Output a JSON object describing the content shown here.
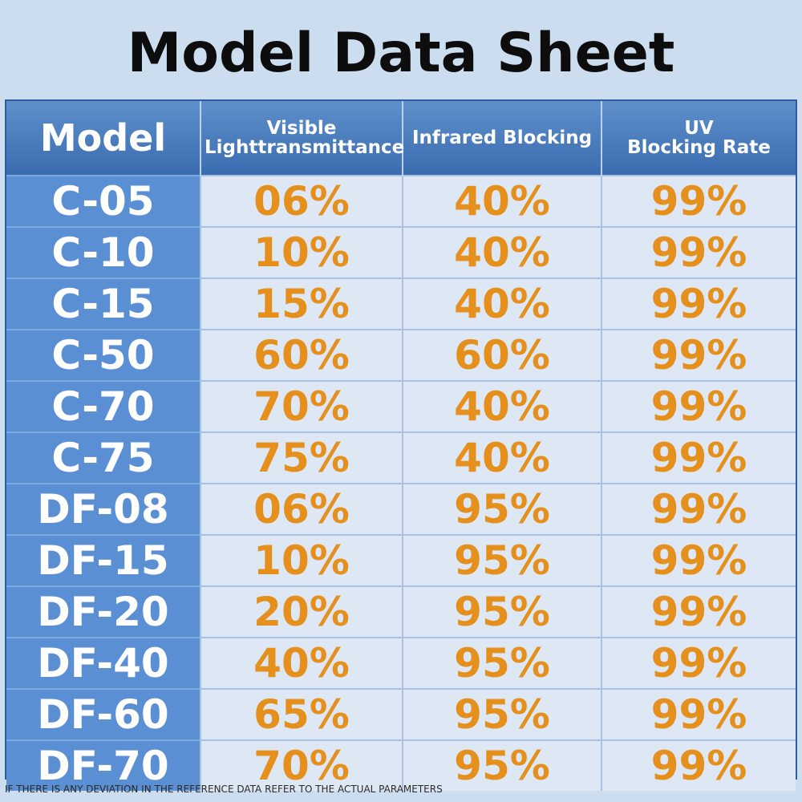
{
  "title": "Model Data Sheet",
  "headers": {
    "model": "Model",
    "visible_line1": "Visible",
    "visible_line2": "Lighttransmittance",
    "infrared": "Infrared Blocking",
    "uv_line1": "UV",
    "uv_line2": "Blocking Rate"
  },
  "rows": [
    {
      "model": "C-05",
      "visible": "06%",
      "infrared": "40%",
      "uv": "99%"
    },
    {
      "model": "C-10",
      "visible": "10%",
      "infrared": "40%",
      "uv": "99%"
    },
    {
      "model": "C-15",
      "visible": "15%",
      "infrared": "40%",
      "uv": "99%"
    },
    {
      "model": "C-50",
      "visible": "60%",
      "infrared": "60%",
      "uv": "99%"
    },
    {
      "model": "C-70",
      "visible": "70%",
      "infrared": "40%",
      "uv": "99%"
    },
    {
      "model": "C-75",
      "visible": "75%",
      "infrared": "40%",
      "uv": "99%"
    },
    {
      "model": "DF-08",
      "visible": "06%",
      "infrared": "95%",
      "uv": "99%"
    },
    {
      "model": "DF-15",
      "visible": "10%",
      "infrared": "95%",
      "uv": "99%"
    },
    {
      "model": "DF-20",
      "visible": "20%",
      "infrared": "95%",
      "uv": "99%"
    },
    {
      "model": "DF-40",
      "visible": "40%",
      "infrared": "95%",
      "uv": "99%"
    },
    {
      "model": "DF-60",
      "visible": "65%",
      "infrared": "95%",
      "uv": "99%"
    },
    {
      "model": "DF-70",
      "visible": "70%",
      "infrared": "95%",
      "uv": "99%"
    }
  ],
  "disclaimer": "IF THERE IS ANY DEVIATION IN THE REFERENCE DATA REFER TO THE ACTUAL PARAMETERS",
  "colors": {
    "background": "#cdddf0",
    "header": "#3a6cb0",
    "model_cell": "#5b8fd3",
    "value_text": "#e58f1c",
    "value_cell": "#dee8f5"
  }
}
